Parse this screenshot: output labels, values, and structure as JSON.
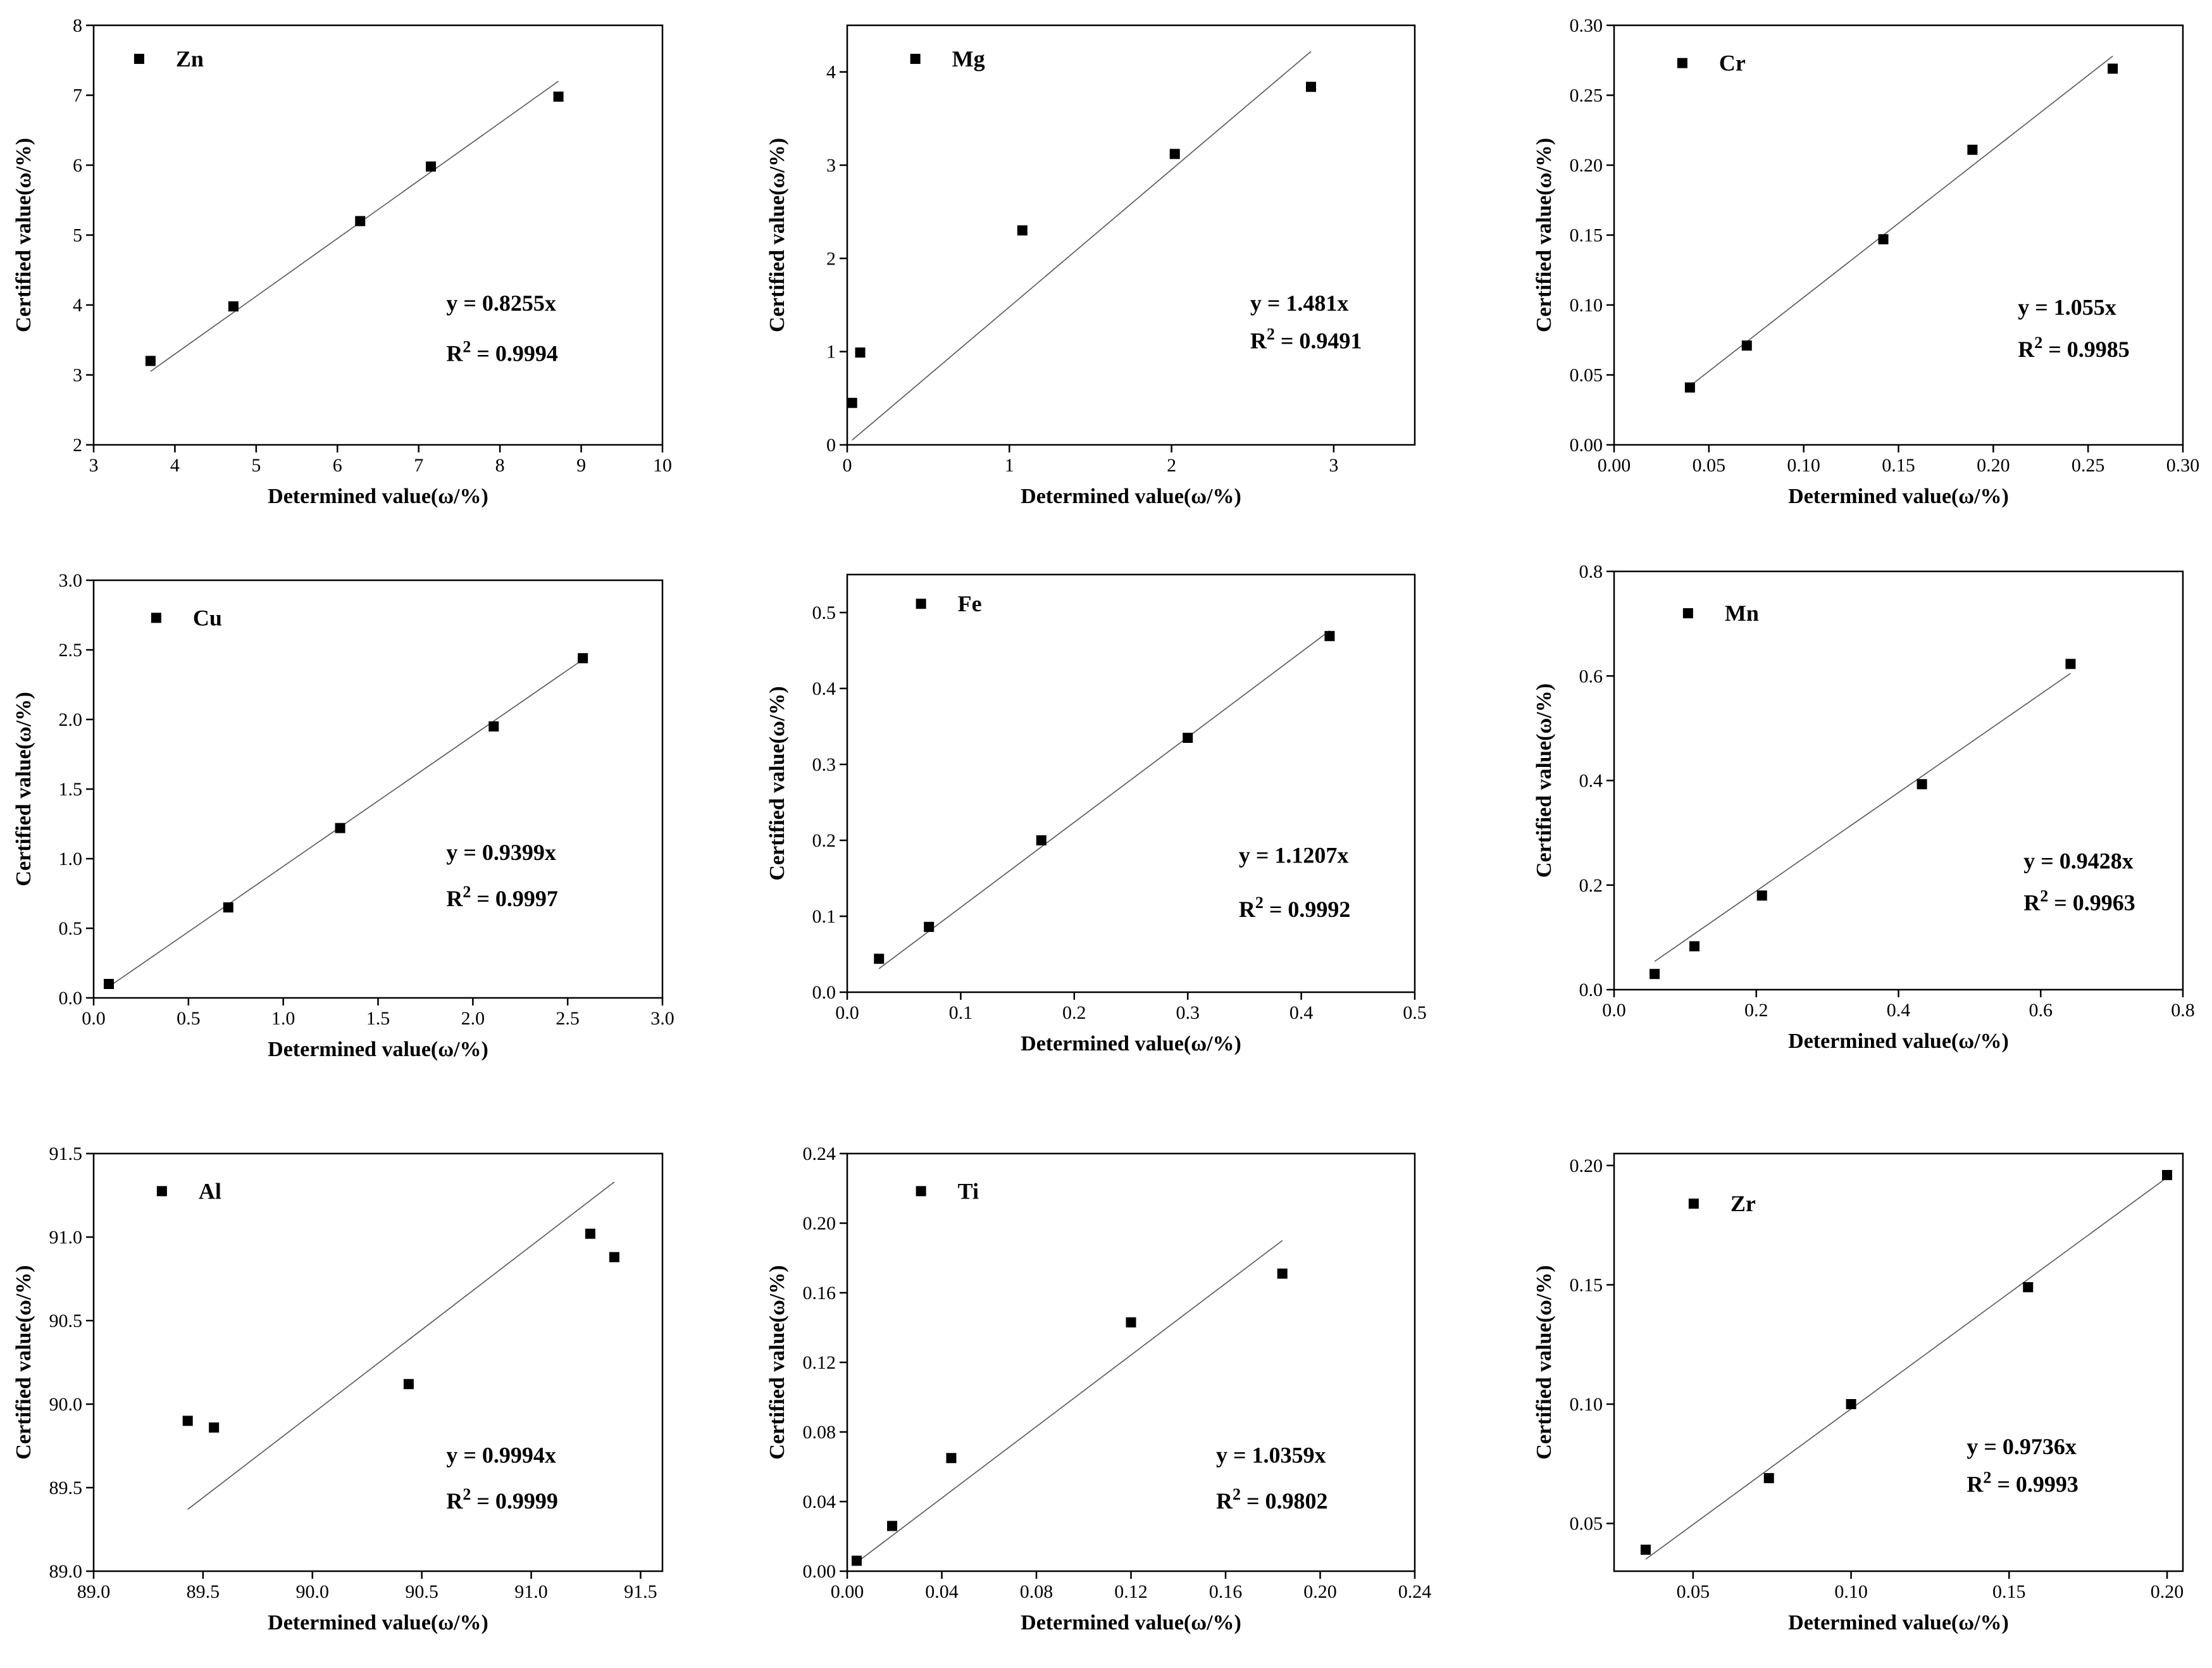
{
  "chart_data": [
    {
      "type": "scatter",
      "element": "Zn",
      "x": [
        3.7,
        4.72,
        6.28,
        7.15,
        8.72
      ],
      "y": [
        3.2,
        3.98,
        5.2,
        5.98,
        6.98
      ],
      "xlim": [
        3,
        10
      ],
      "ylim": [
        2,
        8
      ],
      "xticks": [
        "3",
        "4",
        "5",
        "6",
        "7",
        "8",
        "9",
        "10"
      ],
      "yticks": [
        "2",
        "3",
        "4",
        "5",
        "6",
        "7",
        "8"
      ],
      "xlabel": "Determined value(ω/%)",
      "ylabel": "Certified value(ω/%)",
      "fit_line": {
        "x1": 3.7,
        "y1": 3.05,
        "x2": 8.72,
        "y2": 7.2
      },
      "equation": "y = 0.8255x",
      "r2_prefix": "R",
      "r2_sup": "2",
      "r2_value": " = 0.9994"
    },
    {
      "type": "scatter",
      "element": "Mg",
      "x": [
        0.03,
        0.08,
        1.08,
        2.02,
        2.86
      ],
      "y": [
        0.45,
        0.99,
        2.3,
        3.12,
        3.84
      ],
      "xlim": [
        0,
        3.5
      ],
      "ylim": [
        0,
        4.5
      ],
      "xticks": [
        "0",
        "1",
        "2",
        "3"
      ],
      "yticks": [
        "0",
        "1",
        "2",
        "3",
        "4"
      ],
      "xlabel": "Determined value(ω/%)",
      "ylabel": "Certified value(ω/%)",
      "fit_line": {
        "x1": 0.03,
        "y1": 0.05,
        "x2": 2.86,
        "y2": 4.22
      },
      "equation": "y = 1.481x",
      "r2_prefix": "R",
      "r2_sup": "2",
      "r2_value": " = 0.9491"
    },
    {
      "type": "scatter",
      "element": "Cr",
      "x": [
        0.04,
        0.07,
        0.142,
        0.189,
        0.263
      ],
      "y": [
        0.041,
        0.071,
        0.147,
        0.211,
        0.269
      ],
      "xlim": [
        0,
        0.3
      ],
      "ylim": [
        0,
        0.3
      ],
      "xticks": [
        "0.00",
        "0.05",
        "0.10",
        "0.15",
        "0.20",
        "0.25",
        "0.30"
      ],
      "yticks": [
        "0.00",
        "0.05",
        "0.10",
        "0.15",
        "0.20",
        "0.25",
        "0.30"
      ],
      "xlabel": "Determined value(ω/%)",
      "ylabel": "Certified value(ω/%)",
      "fit_line": {
        "x1": 0.04,
        "y1": 0.042,
        "x2": 0.263,
        "y2": 0.278
      },
      "equation": "y = 1.055x",
      "r2_prefix": "R",
      "r2_sup": "2",
      "r2_value": " = 0.9985"
    },
    {
      "type": "scatter",
      "element": "Cu",
      "x": [
        0.08,
        0.71,
        1.3,
        2.11,
        2.58
      ],
      "y": [
        0.1,
        0.65,
        1.22,
        1.95,
        2.44
      ],
      "xlim": [
        0,
        3
      ],
      "ylim": [
        0,
        3
      ],
      "xticks": [
        "0.0",
        "0.5",
        "1.0",
        "1.5",
        "2.0",
        "2.5",
        "3.0"
      ],
      "yticks": [
        "0.0",
        "0.5",
        "1.0",
        "1.5",
        "2.0",
        "2.5",
        "3.0"
      ],
      "xlabel": "Determined value(ω/%)",
      "ylabel": "Certified value(ω/%)",
      "fit_line": {
        "x1": 0.08,
        "y1": 0.08,
        "x2": 2.58,
        "y2": 2.43
      },
      "equation": "y = 0.9399x",
      "r2_prefix": "R",
      "r2_sup": "2",
      "r2_value": " = 0.9997"
    },
    {
      "type": "scatter",
      "element": "Fe",
      "x": [
        0.028,
        0.072,
        0.171,
        0.3,
        0.425
      ],
      "y": [
        0.044,
        0.086,
        0.2,
        0.335,
        0.469
      ],
      "xlim": [
        0,
        0.5
      ],
      "ylim": [
        0,
        0.55
      ],
      "xticks": [
        "0.0",
        "0.1",
        "0.2",
        "0.3",
        "0.4",
        "0.5"
      ],
      "yticks": [
        "0.0",
        "0.1",
        "0.2",
        "0.3",
        "0.4",
        "0.5"
      ],
      "xlabel": "Determined value(ω/%)",
      "ylabel": "Certified value(ω/%)",
      "fit_line": {
        "x1": 0.028,
        "y1": 0.031,
        "x2": 0.425,
        "y2": 0.476
      },
      "equation": "y = 1.1207x",
      "r2_prefix": "R",
      "r2_sup": "2",
      "r2_value": " = 0.9992"
    },
    {
      "type": "scatter",
      "element": "Mn",
      "x": [
        0.057,
        0.113,
        0.208,
        0.433,
        0.642
      ],
      "y": [
        0.03,
        0.083,
        0.18,
        0.393,
        0.623
      ],
      "xlim": [
        0,
        0.8
      ],
      "ylim": [
        0,
        0.8
      ],
      "xticks": [
        "0.0",
        "0.2",
        "0.4",
        "0.6",
        "0.8"
      ],
      "yticks": [
        "0.0",
        "0.2",
        "0.4",
        "0.6",
        "0.8"
      ],
      "xlabel": "Determined value(ω/%)",
      "ylabel": "Certified value(ω/%)",
      "fit_line": {
        "x1": 0.057,
        "y1": 0.054,
        "x2": 0.642,
        "y2": 0.605
      },
      "equation": "y = 0.9428x",
      "r2_prefix": "R",
      "r2_sup": "2",
      "r2_value": " = 0.9963"
    },
    {
      "type": "scatter",
      "element": "Al",
      "x": [
        89.43,
        89.55,
        90.44,
        91.27,
        91.38
      ],
      "y": [
        89.9,
        89.86,
        90.12,
        91.02,
        90.88
      ],
      "xlim": [
        89,
        91.6
      ],
      "ylim": [
        89,
        91.5
      ],
      "xticks": [
        "89.0",
        "89.5",
        "90.0",
        "90.5",
        "91.0",
        "91.5"
      ],
      "yticks": [
        "89.0",
        "89.5",
        "90.0",
        "90.5",
        "91.0",
        "91.5"
      ],
      "xlabel": "Determined value(ω/%)",
      "ylabel": "Certified value(ω/%)",
      "fit_line": {
        "x1": 89.43,
        "y1": 89.37,
        "x2": 91.38,
        "y2": 91.33
      },
      "equation": "y = 0.9994x",
      "r2_prefix": "R",
      "r2_sup": "2",
      "r2_value": " = 0.9999"
    },
    {
      "type": "scatter",
      "element": "Ti",
      "x": [
        0.004,
        0.019,
        0.044,
        0.12,
        0.184
      ],
      "y": [
        0.006,
        0.026,
        0.065,
        0.143,
        0.171
      ],
      "xlim": [
        0,
        0.24
      ],
      "ylim": [
        0,
        0.24
      ],
      "xticks": [
        "0.00",
        "0.04",
        "0.08",
        "0.12",
        "0.16",
        "0.20",
        "0.24"
      ],
      "yticks": [
        "0.00",
        "0.04",
        "0.08",
        "0.12",
        "0.16",
        "0.20",
        "0.24"
      ],
      "xlabel": "Determined value(ω/%)",
      "ylabel": "Certified value(ω/%)",
      "fit_line": {
        "x1": 0.004,
        "y1": 0.005,
        "x2": 0.184,
        "y2": 0.19
      },
      "equation": "y = 1.0359x",
      "r2_prefix": "R",
      "r2_sup": "2",
      "r2_value": " = 0.9802"
    },
    {
      "type": "scatter",
      "element": "Zr",
      "x": [
        0.035,
        0.074,
        0.1,
        0.156,
        0.2
      ],
      "y": [
        0.039,
        0.069,
        0.1,
        0.149,
        0.196
      ],
      "xlim": [
        0.025,
        0.205
      ],
      "ylim": [
        0.03,
        0.205
      ],
      "xticks": [
        "0.05",
        "0.10",
        "0.15",
        "0.20"
      ],
      "yticks": [
        "0.05",
        "0.10",
        "0.15",
        "0.20"
      ],
      "xlabel": "Determined value(ω/%)",
      "ylabel": "Certified value(ω/%)",
      "fit_line": {
        "x1": 0.035,
        "y1": 0.035,
        "x2": 0.2,
        "y2": 0.195
      },
      "equation": "y = 0.9736x",
      "r2_prefix": "R",
      "r2_sup": "2",
      "r2_value": " = 0.9993"
    }
  ]
}
